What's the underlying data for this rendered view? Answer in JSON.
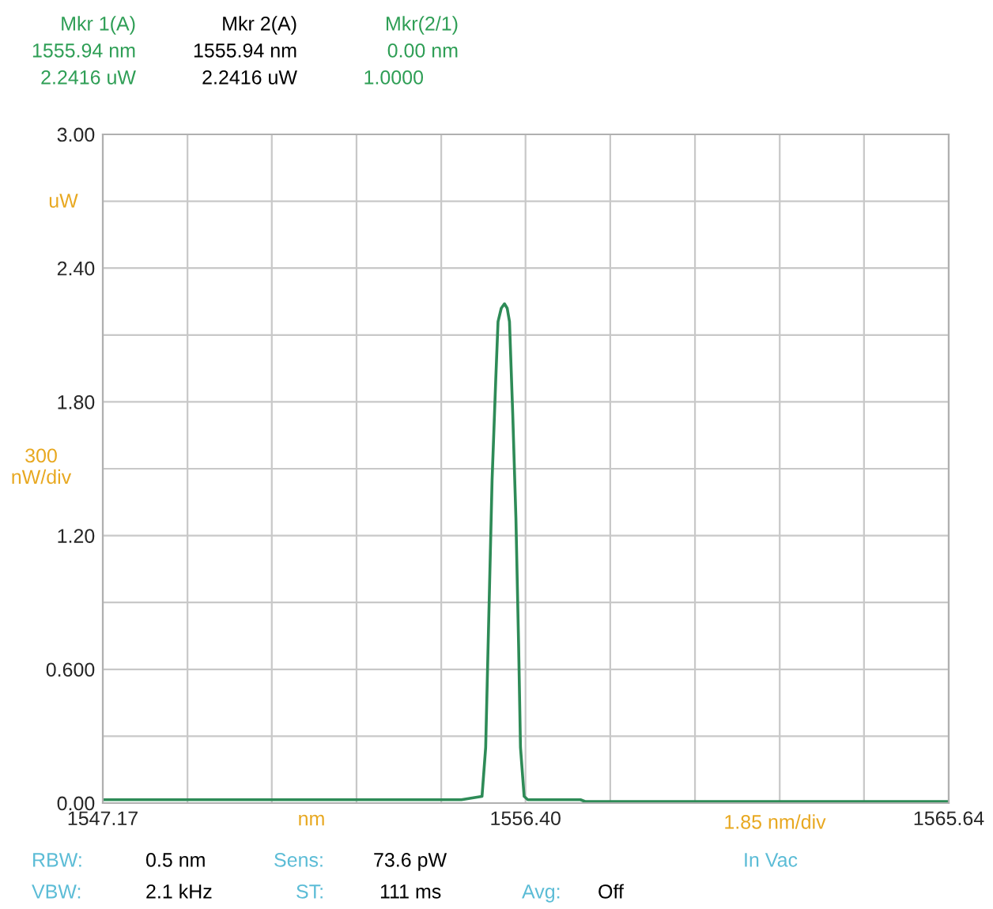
{
  "chart_data": {
    "type": "line",
    "xlabel": "nm",
    "ylabel": "uW",
    "x": [
      1547.17,
      1550,
      1553,
      1555.0,
      1555.45,
      1555.53,
      1555.6,
      1555.67,
      1555.75,
      1555.8,
      1555.87,
      1555.94,
      1556.0,
      1556.05,
      1556.12,
      1556.19,
      1556.25,
      1556.29,
      1556.37,
      1556.45,
      1557.0,
      1557.6,
      1557.7,
      1560,
      1565.64
    ],
    "series": [
      {
        "color": "#2e8b57",
        "values": [
          0.015,
          0.015,
          0.015,
          0.015,
          0.03,
          0.25,
          0.85,
          1.45,
          1.9,
          2.16,
          2.22,
          2.24,
          2.22,
          2.16,
          1.75,
          1.28,
          0.7,
          0.25,
          0.03,
          0.015,
          0.015,
          0.015,
          0.007,
          0.007,
          0.007
        ]
      }
    ],
    "xlim": [
      1547.17,
      1565.64
    ],
    "ylim": [
      0,
      3
    ],
    "xticks": [
      1547.17,
      {
        "value": 1549.02,
        "label": null
      },
      {
        "value": 1550.86,
        "label": null
      },
      {
        "value": 1552.71,
        "label": null
      },
      {
        "value": 1554.56,
        "label": null
      },
      {
        "value": 1556.4,
        "label": "1556.40"
      },
      {
        "value": 1558.25,
        "label": null
      },
      {
        "value": 1560.1,
        "label": null
      },
      {
        "value": 1561.95,
        "label": null
      },
      {
        "value": 1563.79,
        "label": null
      },
      1565.64
    ],
    "yticks": [
      {
        "value": 0,
        "label": "0.00"
      },
      {
        "value": 0.3,
        "label": null
      },
      {
        "value": 0.6,
        "label": "0.600"
      },
      {
        "value": 0.9,
        "label": null
      },
      {
        "value": 1.2,
        "label": "1.20"
      },
      {
        "value": 1.5,
        "label": null
      },
      {
        "value": 1.8,
        "label": "1.80"
      },
      {
        "value": 2.1,
        "label": null
      },
      {
        "value": 2.4,
        "label": "2.40"
      },
      {
        "value": 2.7,
        "label": null
      },
      {
        "value": 3,
        "label": "3.00"
      }
    ],
    "grid": true,
    "marker": "none",
    "line_style": "solid",
    "annotations": [
      "Mkr 1(A)",
      "1555.94 nm",
      "2.2416 uW",
      "Mkr 2(A)",
      "1555.94 nm",
      "2.2416 uW",
      "Mkr(2/1)",
      "0.00 nm",
      "1.0000",
      "300\nnW/div",
      "1.85 nm/div",
      "RBW:",
      "0.5 nm",
      "Sens:",
      "73.6 pW",
      "In Vac",
      "VBW:",
      "2.1 kHz",
      "ST:",
      "111 ms",
      "Avg:",
      "Off"
    ]
  }
}
